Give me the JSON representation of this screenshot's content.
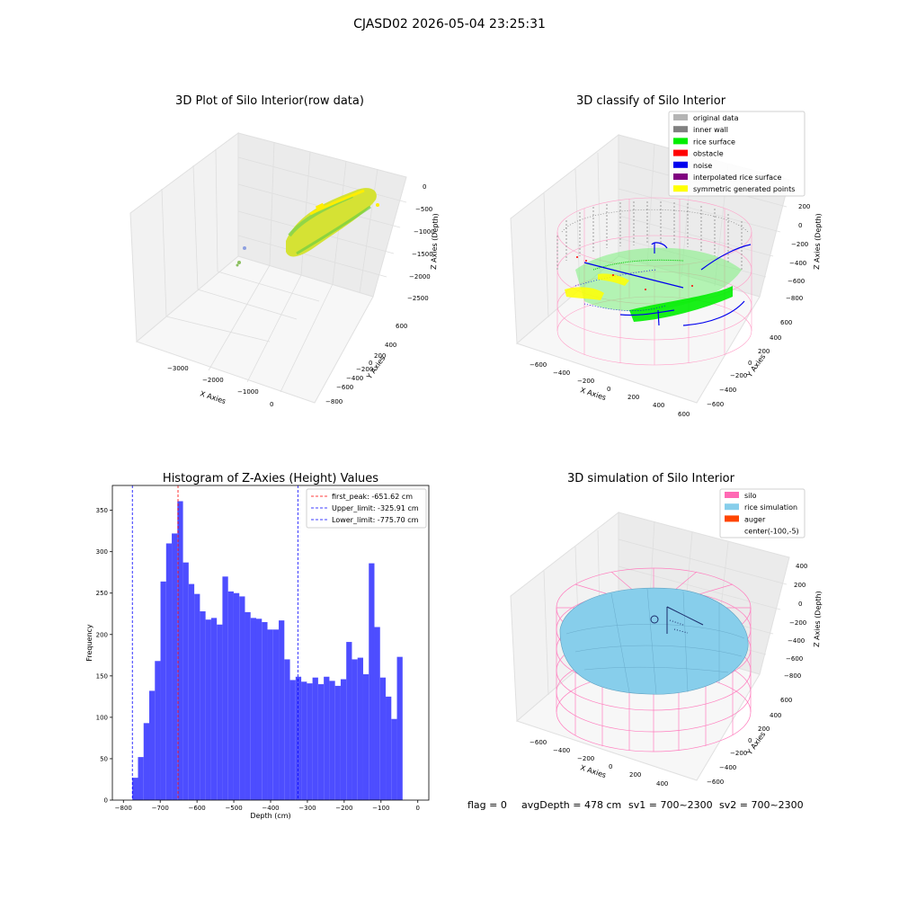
{
  "figure": {
    "suptitle": "CJASD02 2026-05-04 23:25:31",
    "colors": {
      "raw_a": "#d9e021",
      "raw_b": "#6ccf45",
      "raw_c": "#ffee00",
      "hist": "#4d4dff"
    }
  },
  "panel_raw": {
    "title": "3D Plot of Silo Interior(row data)",
    "xlabel": "X Axies",
    "ylabel": "Y Axies",
    "zlabel": "Z Axies (Depth)",
    "x_ticks": [
      "−3000",
      "−2000",
      "−1000",
      "0"
    ],
    "y_ticks": [
      "600",
      "400",
      "200",
      "0",
      "−200",
      "−400",
      "−600",
      "−800"
    ],
    "z_ticks": [
      "0",
      "−500",
      "−1000",
      "−1500",
      "−2000",
      "−2500"
    ]
  },
  "panel_classify": {
    "title": "3D classify of Silo Interior",
    "xlabel": "X Axies",
    "ylabel": "Y Axies",
    "zlabel": "Z Axies (Depth)",
    "x_ticks": [
      "−600",
      "−400",
      "−200",
      "0",
      "200",
      "400",
      "600"
    ],
    "y_ticks": [
      "600",
      "400",
      "200",
      "0",
      "−200",
      "−400",
      "−600"
    ],
    "z_ticks": [
      "200",
      "0",
      "−200",
      "−400",
      "−600",
      "−800"
    ],
    "legend": [
      {
        "label": "original data",
        "color": "#b4b4b4"
      },
      {
        "label": "inner wall",
        "color": "#808080"
      },
      {
        "label": "rice surface",
        "color": "#00ee00"
      },
      {
        "label": "obstacle",
        "color": "#ff0000"
      },
      {
        "label": "noise",
        "color": "#0000ee"
      },
      {
        "label": "interpolated rice surface",
        "color": "#800080"
      },
      {
        "label": "symmetric generated points",
        "color": "#ffff00"
      }
    ]
  },
  "panel_sim": {
    "title": "3D simulation of Silo Interior",
    "xlabel": "X Axies",
    "ylabel": "Y Axies",
    "zlabel": "Z Axies (Depth)",
    "x_ticks": [
      "−600",
      "−400",
      "−200",
      "0",
      "200",
      "400"
    ],
    "y_ticks": [
      "600",
      "400",
      "200",
      "0",
      "−200",
      "−400",
      "−600"
    ],
    "z_ticks": [
      "400",
      "200",
      "0",
      "−200",
      "−400",
      "−600",
      "−800"
    ],
    "legend": [
      {
        "label": "silo",
        "color": "#ff69b4"
      },
      {
        "label": "rice simulation",
        "color": "#87ceeb"
      },
      {
        "label": "auger",
        "color": "#ff4500"
      },
      {
        "label": "center(-100,-5)",
        "color": ""
      }
    ]
  },
  "stats": {
    "flag": "flag = 0",
    "avg": "avgDepth = 478 cm",
    "sv1": "sv1 = 700~2300",
    "sv2": "sv2 = 700~2300"
  },
  "chart_data": {
    "type": "bar",
    "title": "Histogram of Z-Axies (Height) Values",
    "xlabel": "Depth (cm)",
    "ylabel": "Frequency",
    "xlim": [
      -830,
      30
    ],
    "ylim": [
      0,
      380
    ],
    "x_ticks": [
      -800,
      -700,
      -600,
      -500,
      -400,
      -300,
      -200,
      -100,
      0
    ],
    "y_ticks": [
      0,
      50,
      100,
      150,
      200,
      250,
      300,
      350
    ],
    "bin_start": -775.7,
    "bin_width": 15.3,
    "values": [
      27,
      52,
      93,
      132,
      168,
      264,
      310,
      322,
      361,
      287,
      261,
      249,
      228,
      218,
      220,
      212,
      270,
      252,
      250,
      246,
      227,
      220,
      219,
      215,
      206,
      206,
      217,
      170,
      145,
      149,
      143,
      141,
      148,
      140,
      149,
      144,
      138,
      146,
      191,
      170,
      172,
      152,
      286,
      209,
      148,
      125,
      98,
      173
    ],
    "vlines": [
      {
        "value": -651.62,
        "color": "#ff0000",
        "label": "first_peak: -651.62 cm"
      },
      {
        "value": -325.91,
        "color": "#0000ff",
        "label": "Upper_limit: -325.91 cm"
      },
      {
        "value": -775.7,
        "color": "#0000ff",
        "label": "Lower_limit: -775.70 cm"
      }
    ],
    "legend_position": "top-right"
  }
}
